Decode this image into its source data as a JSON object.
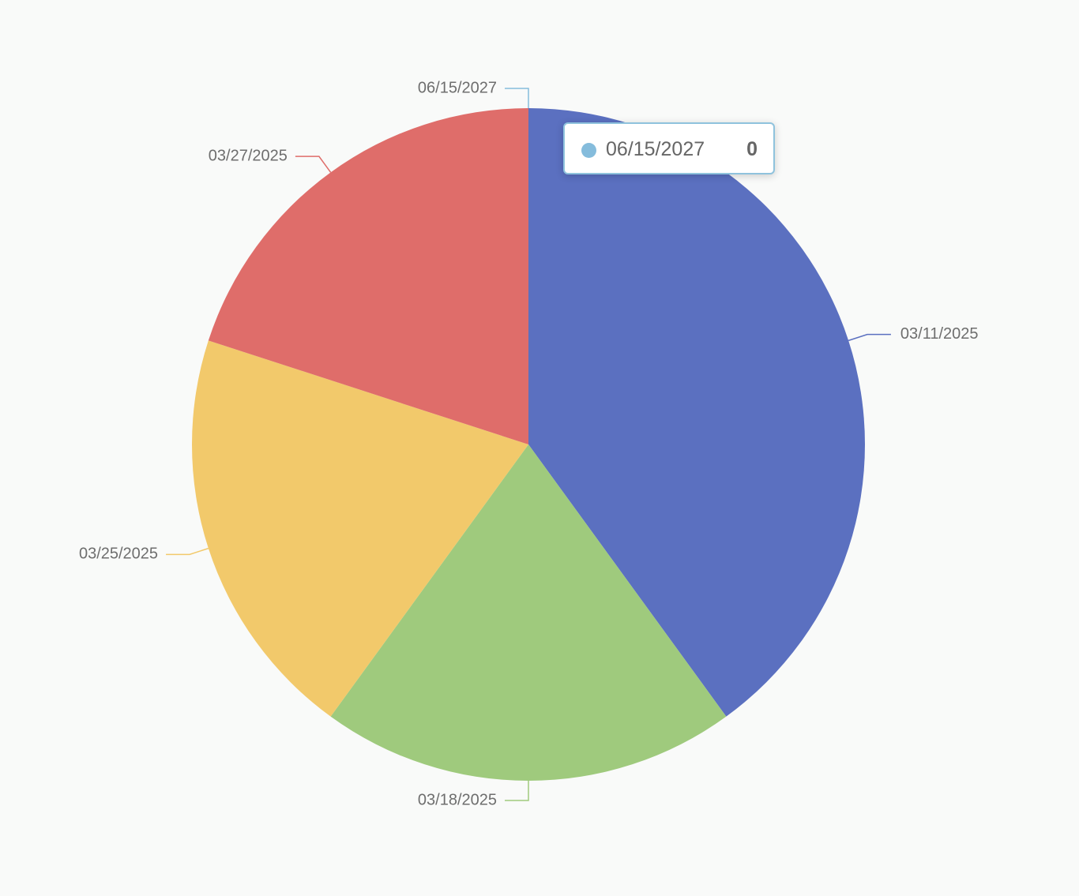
{
  "chart_data": {
    "type": "pie",
    "categories": [
      "03/11/2025",
      "03/18/2025",
      "03/25/2025",
      "03/27/2025",
      "06/15/2027"
    ],
    "values": [
      2,
      1,
      1,
      1,
      0
    ],
    "colors": [
      "#5b70c0",
      "#9fca7d",
      "#f2c96b",
      "#df6d6a",
      "#85bcdc"
    ]
  }
}
